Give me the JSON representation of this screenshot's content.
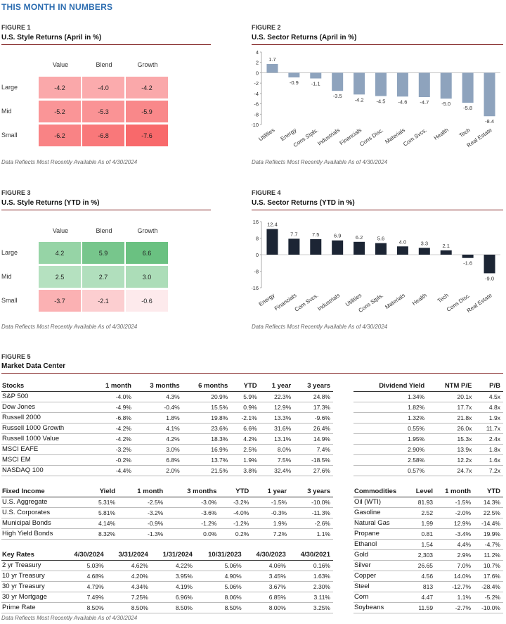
{
  "page_title": "THIS MONTH IN NUMBERS",
  "note_text": "Data Reflects Most Recently Available As of 4/30/2024",
  "chart_data": [
    {
      "type": "heatmap",
      "figure_label": "FIGURE 1",
      "title": "U.S. Style Returns (April in %)",
      "columns": [
        "Value",
        "Blend",
        "Growth"
      ],
      "rows": [
        "Large",
        "Mid",
        "Small"
      ],
      "values": [
        [
          -4.2,
          -4.0,
          -4.2
        ],
        [
          -5.2,
          -5.3,
          -5.9
        ],
        [
          -6.2,
          -6.8,
          -7.6
        ]
      ],
      "labels": [
        [
          "-4.2",
          "-4.0",
          "-4.2"
        ],
        [
          "-5.2",
          "-5.3",
          "-5.9"
        ],
        [
          "-6.2",
          "-6.8",
          "-7.6"
        ]
      ]
    },
    {
      "type": "bar",
      "figure_label": "FIGURE 2",
      "title": "U.S. Sector Returns (April in %)",
      "categories": [
        "Utilities",
        "Energy",
        "Cons Stpls.",
        "Industrials",
        "Financials",
        "Cons Disc.",
        "Materials",
        "Com Svcs.",
        "Health",
        "Tech",
        "Real Estate"
      ],
      "values": [
        1.7,
        -0.9,
        -1.1,
        -3.5,
        -4.2,
        -4.5,
        -4.6,
        -4.7,
        -5.0,
        -5.8,
        -8.4
      ],
      "ylim": [
        -10,
        4
      ],
      "yticks": [
        4,
        2,
        0,
        -2,
        -4,
        -6,
        -8,
        -10
      ],
      "color": "#8ea3bd"
    },
    {
      "type": "heatmap",
      "figure_label": "FIGURE 3",
      "title": "U.S. Style Returns (YTD in %)",
      "columns": [
        "Value",
        "Blend",
        "Growth"
      ],
      "rows": [
        "Large",
        "Mid",
        "Small"
      ],
      "values": [
        [
          4.2,
          5.9,
          6.6
        ],
        [
          2.5,
          2.7,
          3.0
        ],
        [
          -3.7,
          -2.1,
          -0.6
        ]
      ],
      "labels": [
        [
          "4.2",
          "5.9",
          "6.6"
        ],
        [
          "2.5",
          "2.7",
          "3.0"
        ],
        [
          "-3.7",
          "-2.1",
          "-0.6"
        ]
      ]
    },
    {
      "type": "bar",
      "figure_label": "FIGURE 4",
      "title": "U.S. Sector Returns (YTD in %)",
      "categories": [
        "Energy",
        "Financials",
        "Com Svcs.",
        "Industrials",
        "Utilities",
        "Cons Stpls.",
        "Materials",
        "Health",
        "Tech",
        "Cons Disc.",
        "Real Estate"
      ],
      "values": [
        12.4,
        7.7,
        7.5,
        6.9,
        6.2,
        5.6,
        4.0,
        3.3,
        2.1,
        -1.6,
        -9.0
      ],
      "ylim": [
        -16,
        16
      ],
      "yticks": [
        16,
        8,
        0,
        -8,
        -16
      ],
      "color": "#1c2534"
    },
    {
      "type": "table",
      "figure_label": "FIGURE 5",
      "title": "Market Data Center",
      "tables": [
        {
          "header": [
            "Stocks",
            "1 month",
            "3 months",
            "6 months",
            "YTD",
            "1 year",
            "3 years"
          ],
          "rows": [
            [
              "S&P 500",
              "-4.0%",
              "4.3%",
              "20.9%",
              "5.9%",
              "22.3%",
              "24.8%"
            ],
            [
              "Dow Jones",
              "-4.9%",
              "-0.4%",
              "15.5%",
              "0.9%",
              "12.9%",
              "17.3%"
            ],
            [
              "Russell 2000",
              "-6.8%",
              "1.8%",
              "19.8%",
              "-2.1%",
              "13.3%",
              "-9.6%"
            ],
            [
              "Russell 1000 Growth",
              "-4.2%",
              "4.1%",
              "23.6%",
              "6.6%",
              "31.6%",
              "26.4%"
            ],
            [
              "Russell 1000 Value",
              "-4.2%",
              "4.2%",
              "18.3%",
              "4.2%",
              "13.1%",
              "14.9%"
            ],
            [
              "MSCI EAFE",
              "-3.2%",
              "3.0%",
              "16.9%",
              "2.5%",
              "8.0%",
              "7.4%"
            ],
            [
              "MSCI EM",
              "-0.2%",
              "6.8%",
              "13.7%",
              "1.9%",
              "7.5%",
              "-18.5%"
            ],
            [
              "NASDAQ 100",
              "-4.4%",
              "2.0%",
              "21.5%",
              "3.8%",
              "32.4%",
              "27.6%"
            ]
          ]
        },
        {
          "header": [
            "Dividend Yield",
            "NTM P/E",
            "P/B"
          ],
          "rows": [
            [
              "1.34%",
              "20.1x",
              "4.5x"
            ],
            [
              "1.82%",
              "17.7x",
              "4.8x"
            ],
            [
              "1.32%",
              "21.8x",
              "1.9x"
            ],
            [
              "0.55%",
              "26.0x",
              "11.7x"
            ],
            [
              "1.95%",
              "15.3x",
              "2.4x"
            ],
            [
              "2.90%",
              "13.9x",
              "1.8x"
            ],
            [
              "2.58%",
              "12.2x",
              "1.6x"
            ],
            [
              "0.57%",
              "24.7x",
              "7.2x"
            ]
          ]
        },
        {
          "header": [
            "Fixed Income",
            "Yield",
            "1 month",
            "3 months",
            "YTD",
            "1 year",
            "3 years"
          ],
          "rows": [
            [
              "U.S. Aggregate",
              "5.31%",
              "-2.5%",
              "-3.0%",
              "-3.2%",
              "-1.5%",
              "-10.0%"
            ],
            [
              "U.S. Corporates",
              "5.81%",
              "-3.2%",
              "-3.6%",
              "-4.0%",
              "-0.3%",
              "-11.3%"
            ],
            [
              "Municipal Bonds",
              "4.14%",
              "-0.9%",
              "-1.2%",
              "-1.2%",
              "1.9%",
              "-2.6%"
            ],
            [
              "High Yield Bonds",
              "8.32%",
              "-1.3%",
              "0.0%",
              "0.2%",
              "7.2%",
              "1.1%"
            ]
          ]
        },
        {
          "header": [
            "Key Rates",
            "4/30/2024",
            "3/31/2024",
            "1/31/2024",
            "10/31/2023",
            "4/30/2023",
            "4/30/2021"
          ],
          "rows": [
            [
              "2 yr Treasury",
              "5.03%",
              "4.62%",
              "4.22%",
              "5.06%",
              "4.06%",
              "0.16%"
            ],
            [
              "10 yr Treasury",
              "4.68%",
              "4.20%",
              "3.95%",
              "4.90%",
              "3.45%",
              "1.63%"
            ],
            [
              "30 yr Treasury",
              "4.79%",
              "4.34%",
              "4.19%",
              "5.06%",
              "3.67%",
              "2.30%"
            ],
            [
              "30 yr Mortgage",
              "7.49%",
              "7.25%",
              "6.96%",
              "8.06%",
              "6.85%",
              "3.11%"
            ],
            [
              "Prime Rate",
              "8.50%",
              "8.50%",
              "8.50%",
              "8.50%",
              "8.00%",
              "3.25%"
            ]
          ]
        },
        {
          "header": [
            "Commodities",
            "Level",
            "1 month",
            "YTD"
          ],
          "rows": [
            [
              "Oil (WTI)",
              "81.93",
              "-1.5%",
              "14.3%"
            ],
            [
              "Gasoline",
              "2.52",
              "-2.0%",
              "22.5%"
            ],
            [
              "Natural Gas",
              "1.99",
              "12.9%",
              "-14.4%"
            ],
            [
              "Propane",
              "0.81",
              "-3.4%",
              "19.9%"
            ],
            [
              "Ethanol",
              "1.54",
              "4.4%",
              "-4.7%"
            ],
            [
              "Gold",
              "2,303",
              "2.9%",
              "11.2%"
            ],
            [
              "Silver",
              "26.65",
              "7.0%",
              "10.7%"
            ],
            [
              "Copper",
              "4.56",
              "14.0%",
              "17.6%"
            ],
            [
              "Steel",
              "813",
              "-12.7%",
              "-28.4%"
            ],
            [
              "Corn",
              "4.47",
              "1.1%",
              "-5.2%"
            ],
            [
              "Soybeans",
              "11.59",
              "-2.7%",
              "-10.0%"
            ]
          ]
        }
      ]
    }
  ]
}
